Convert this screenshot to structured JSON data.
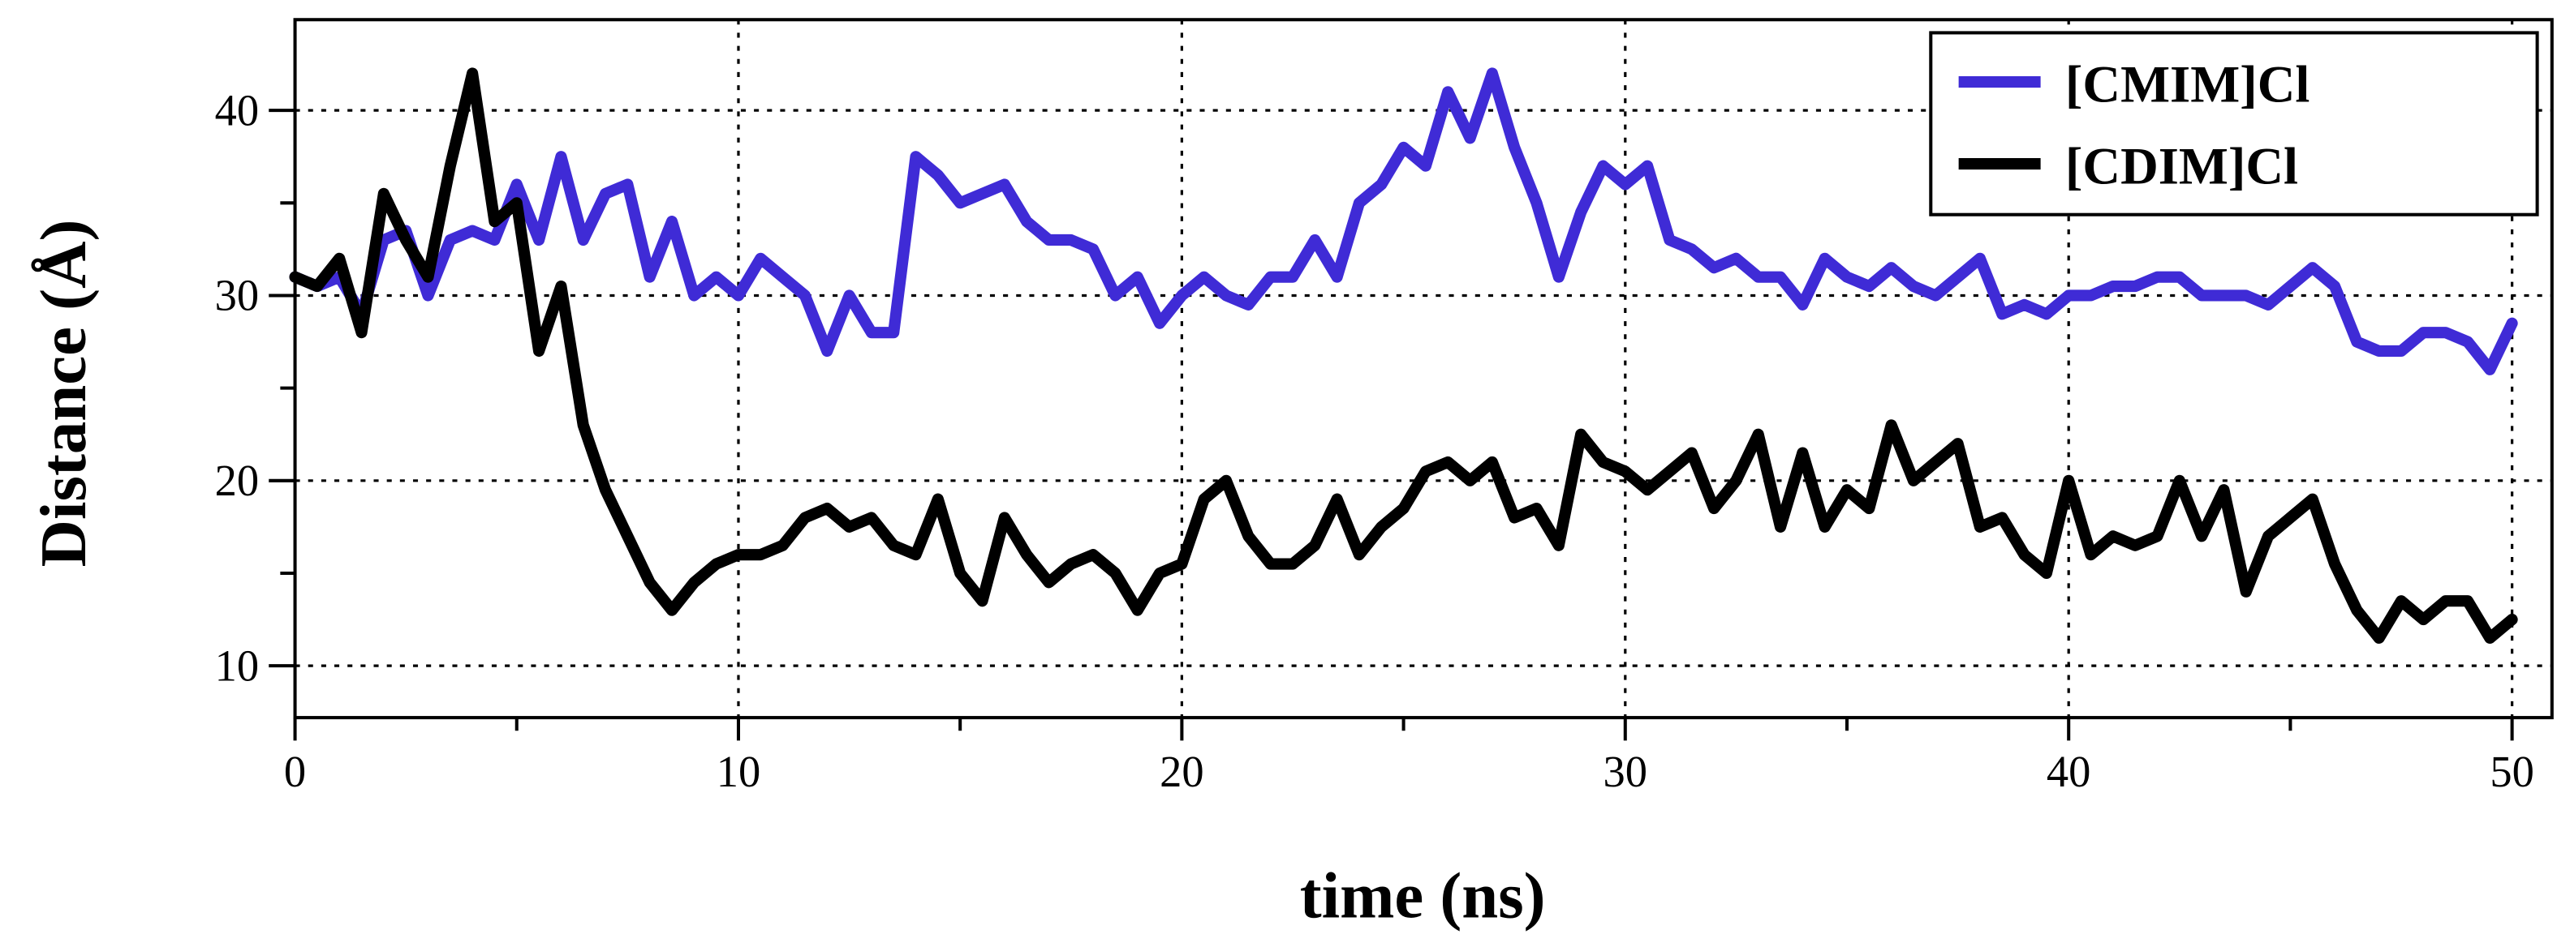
{
  "chart_data": {
    "type": "line",
    "xlabel": "time (ns)",
    "ylabel": "Distance (Å)",
    "x": [
      0,
      0.5,
      1,
      1.5,
      2,
      2.5,
      3,
      3.5,
      4,
      4.5,
      5,
      5.5,
      6,
      6.5,
      7,
      7.5,
      8,
      8.5,
      9,
      9.5,
      10,
      10.5,
      11,
      11.5,
      12,
      12.5,
      13,
      13.5,
      14,
      14.5,
      15,
      15.5,
      16,
      16.5,
      17,
      17.5,
      18,
      18.5,
      19,
      19.5,
      20,
      20.5,
      21,
      21.5,
      22,
      22.5,
      23,
      23.5,
      24,
      24.5,
      25,
      25.5,
      26,
      26.5,
      27,
      27.5,
      28,
      28.5,
      29,
      29.5,
      30,
      30.5,
      31,
      31.5,
      32,
      32.5,
      33,
      33.5,
      34,
      34.5,
      35,
      35.5,
      36,
      36.5,
      37,
      37.5,
      38,
      38.5,
      39,
      39.5,
      40,
      40.5,
      41,
      41.5,
      42,
      42.5,
      43,
      43.5,
      44,
      44.5,
      45,
      45.5,
      46,
      46.5,
      47,
      47.5,
      48,
      48.5,
      49,
      49.5,
      50
    ],
    "series": [
      {
        "name": "[CMIM]Cl",
        "color": "#3f2bd6",
        "values": [
          31,
          30.5,
          31,
          29,
          33,
          33.5,
          30,
          33,
          33.5,
          33,
          36,
          33,
          37.5,
          33,
          35.5,
          36,
          31,
          34,
          30,
          31,
          30,
          32,
          31,
          30,
          27,
          30,
          28,
          28,
          37.5,
          36.5,
          35,
          35.5,
          36,
          34,
          33,
          33,
          32.5,
          30,
          31,
          28.5,
          30,
          31,
          30,
          29.5,
          31,
          31,
          33,
          31,
          35,
          36,
          38,
          37,
          41,
          38.5,
          42,
          38,
          35,
          31,
          34.5,
          37,
          36,
          37,
          33,
          32.5,
          31.5,
          32,
          31,
          31,
          29.5,
          32,
          31,
          30.5,
          31.5,
          30.5,
          30,
          31,
          32,
          29,
          29.5,
          29,
          30,
          30,
          30.5,
          30.5,
          31,
          31,
          30,
          30,
          30,
          29.5,
          30.5,
          31.5,
          30.5,
          27.5,
          27,
          27,
          28,
          28,
          27.5,
          26,
          28.5
        ]
      },
      {
        "name": "[CDIM]Cl",
        "color": "#000000",
        "values": [
          31,
          30.5,
          32,
          28,
          35.5,
          33,
          31,
          37,
          42,
          34,
          35,
          27,
          30.5,
          23,
          19.5,
          17,
          14.5,
          13,
          14.5,
          15.5,
          16,
          16,
          16.5,
          18,
          18.5,
          17.5,
          18,
          16.5,
          16,
          19,
          15,
          13.5,
          18,
          16,
          14.5,
          15.5,
          16,
          15,
          13,
          15,
          15.5,
          19,
          20,
          17,
          15.5,
          15.5,
          16.5,
          19,
          16,
          17.5,
          18.5,
          20.5,
          21,
          20,
          21,
          18,
          18.5,
          16.5,
          22.5,
          21,
          20.5,
          19.5,
          20.5,
          21.5,
          18.5,
          20,
          22.5,
          17.5,
          21.5,
          17.5,
          19.5,
          18.5,
          23,
          20,
          21,
          22,
          17.5,
          18,
          16,
          15,
          20,
          16,
          17,
          16.5,
          17,
          20,
          17,
          19.5,
          14,
          17,
          18,
          19,
          15.5,
          13,
          11.5,
          13.5,
          12.5,
          13.5,
          13.5,
          11.5,
          12.5
        ]
      }
    ],
    "xlim": [
      0,
      50.9
    ],
    "ylim": [
      7.2,
      44.9
    ],
    "xticks": [
      0,
      10,
      20,
      30,
      40,
      50
    ],
    "yticks": [
      10,
      20,
      30,
      40
    ],
    "xminorticks": [
      5,
      15,
      25,
      35,
      45
    ],
    "yminorticks": [
      15,
      25,
      35
    ],
    "grid": true,
    "legend": "upper right"
  }
}
